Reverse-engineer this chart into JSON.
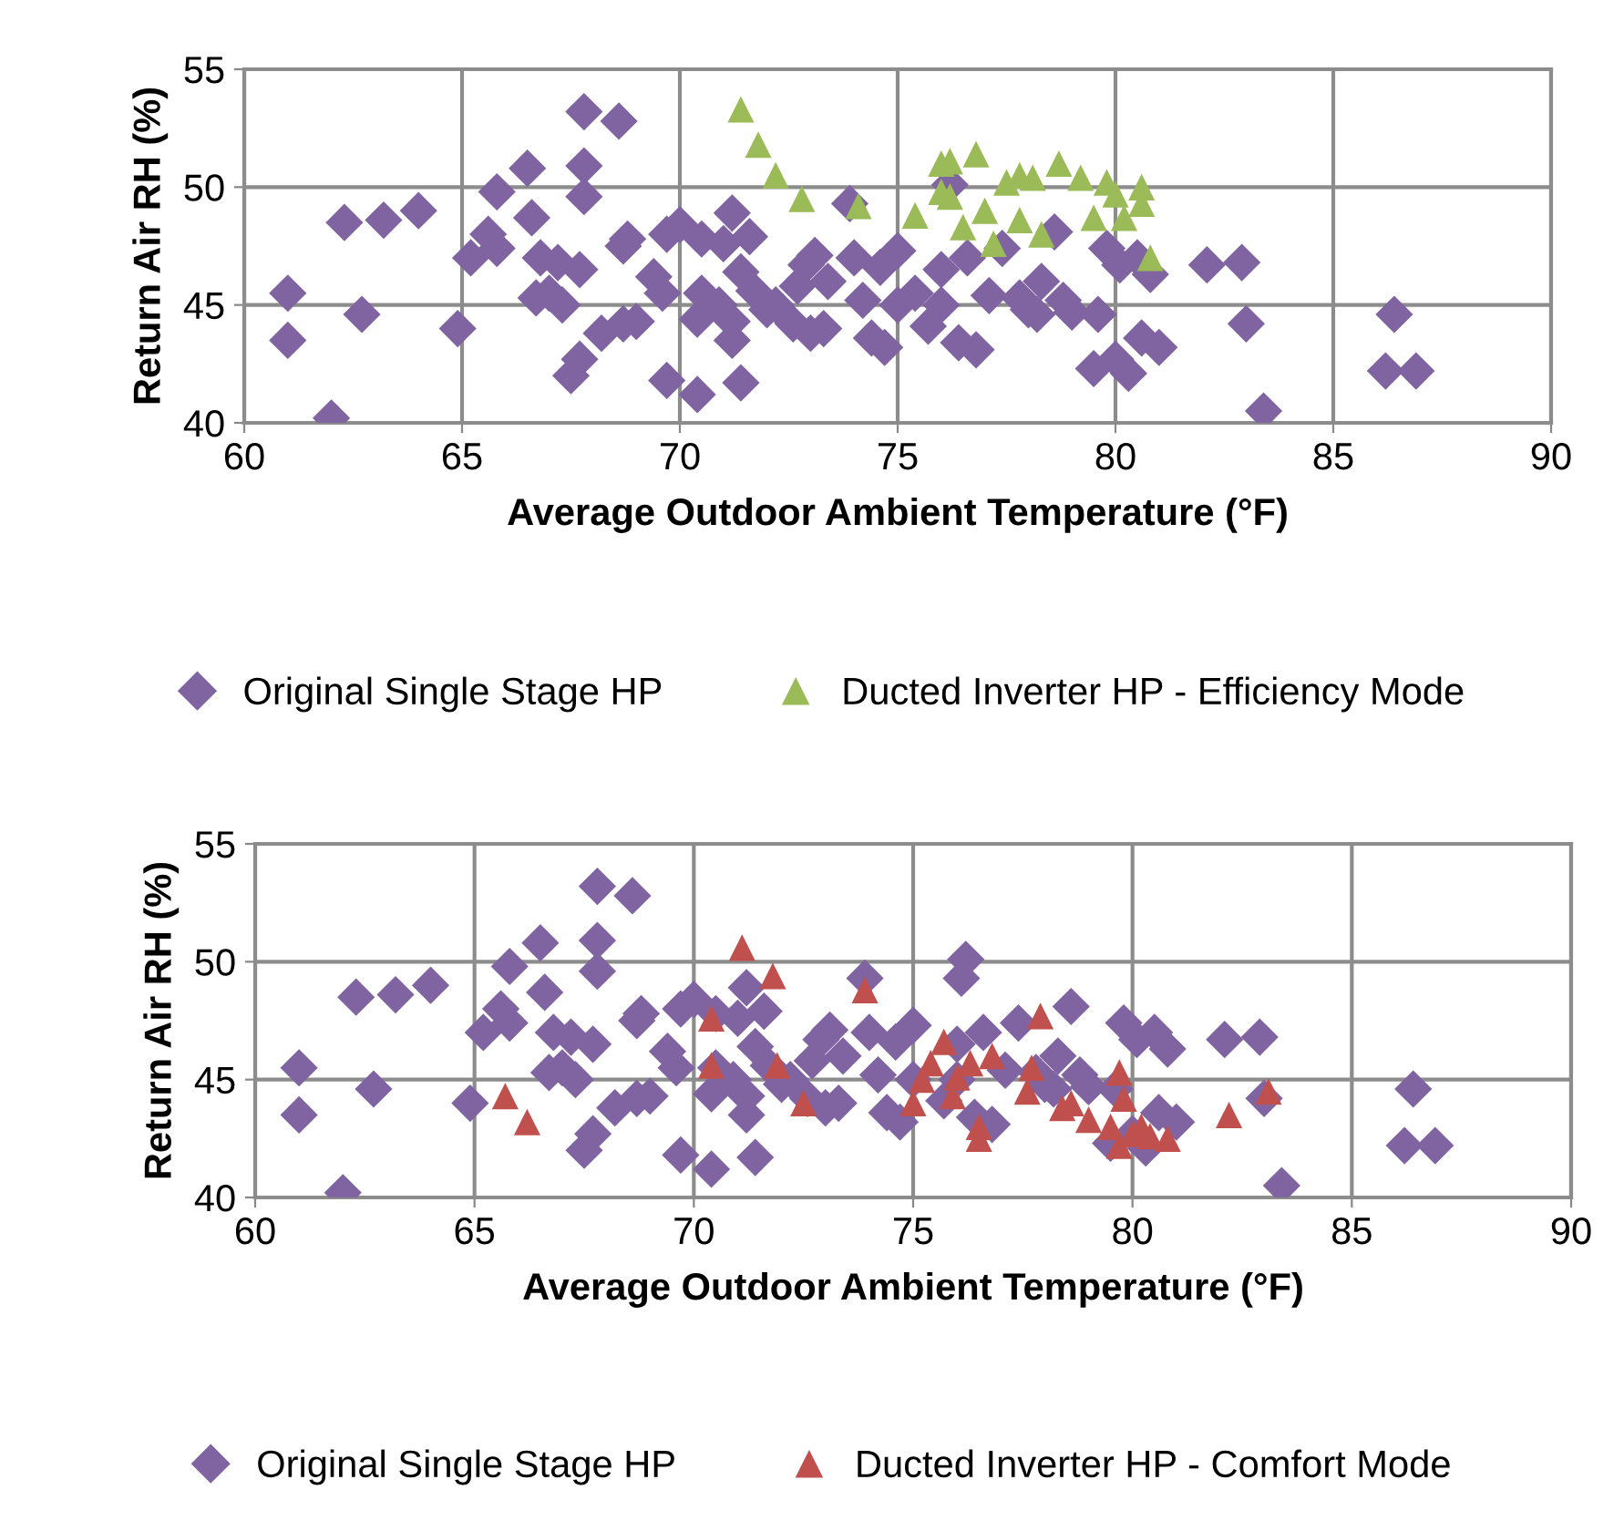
{
  "chart_data": [
    {
      "type": "scatter",
      "xlabel": "Average Outdoor Ambient Temperature (°F)",
      "ylabel": "Return Air RH (%)",
      "xlim": [
        60,
        90
      ],
      "xticks": [
        60,
        65,
        70,
        75,
        80,
        85,
        90
      ],
      "ylim": [
        40,
        55
      ],
      "yticks": [
        40,
        45,
        50,
        55
      ],
      "grid": true,
      "legend": "bottom",
      "series": [
        {
          "name": "Original Single Stage HP",
          "color": "#8064a2",
          "marker": "diamond",
          "x": [
            61.0,
            61.0,
            62.0,
            62.3,
            62.7,
            63.2,
            64.0,
            64.9,
            65.2,
            65.6,
            65.8,
            65.8,
            66.5,
            66.6,
            66.7,
            66.8,
            67.0,
            67.2,
            67.3,
            67.5,
            67.7,
            67.7,
            67.8,
            67.8,
            67.8,
            68.2,
            68.6,
            68.7,
            68.7,
            68.8,
            69.0,
            69.4,
            69.6,
            69.7,
            69.7,
            70.0,
            70.4,
            70.4,
            70.5,
            70.5,
            70.9,
            71.0,
            71.2,
            71.2,
            71.2,
            71.4,
            71.4,
            71.6,
            71.7,
            72.0,
            72.2,
            72.6,
            72.7,
            72.9,
            73.0,
            73.1,
            73.3,
            73.4,
            73.9,
            74.0,
            74.2,
            74.4,
            74.6,
            74.7,
            75.0,
            75.0,
            75.4,
            75.7,
            76.0,
            76.0,
            76.1,
            76.2,
            76.4,
            76.6,
            76.8,
            77.1,
            77.4,
            77.8,
            78.0,
            78.2,
            78.3,
            78.6,
            78.8,
            79.0,
            79.5,
            79.6,
            79.8,
            80.0,
            80.1,
            80.3,
            80.5,
            80.6,
            80.8,
            81.0,
            82.1,
            82.9,
            83.0,
            83.4,
            86.2,
            86.4,
            86.9
          ],
          "values": [
            45.5,
            43.5,
            40.2,
            48.5,
            44.6,
            48.6,
            49.0,
            44.0,
            47.0,
            48.0,
            49.8,
            47.4,
            50.8,
            48.7,
            45.3,
            47.0,
            45.5,
            46.8,
            45.0,
            42.0,
            42.7,
            46.5,
            53.2,
            50.9,
            49.6,
            43.8,
            52.8,
            47.5,
            44.2,
            47.8,
            44.3,
            46.2,
            45.5,
            41.8,
            48.0,
            48.4,
            41.2,
            44.4,
            45.5,
            47.8,
            45.0,
            47.6,
            44.3,
            43.5,
            48.9,
            46.4,
            41.7,
            47.9,
            45.6,
            44.8,
            45.0,
            44.2,
            45.8,
            46.7,
            43.8,
            47.1,
            44.0,
            46.0,
            49.3,
            47.0,
            45.2,
            43.6,
            46.6,
            43.2,
            47.3,
            45.0,
            45.5,
            44.1,
            46.5,
            45.0,
            null,
            50.1,
            43.4,
            47.0,
            43.1,
            45.4,
            47.4,
            45.3,
            44.8,
            44.6,
            46.0,
            48.1,
            45.2,
            44.7,
            42.3,
            44.6,
            47.4,
            42.7,
            46.7,
            42.1,
            47.0,
            43.6,
            46.3,
            43.2,
            46.7,
            46.8,
            44.2,
            40.5,
            42.2,
            44.6,
            42.2
          ]
        },
        {
          "name": "Ducted Inverter HP - Efficiency Mode",
          "color": "#9bbb59",
          "marker": "triangle",
          "x": [
            71.4,
            71.8,
            72.2,
            72.8,
            74.1,
            75.4,
            76.0,
            76.0,
            76.2,
            76.2,
            76.5,
            76.8,
            77.0,
            77.2,
            77.5,
            77.8,
            77.8,
            78.1,
            78.3,
            78.7,
            79.2,
            79.5,
            79.8,
            80.0,
            80.2,
            80.6,
            80.6,
            80.8
          ],
          "values": [
            53.3,
            51.8,
            50.5,
            49.5,
            49.2,
            48.8,
            51.0,
            49.8,
            51.1,
            49.6,
            48.3,
            51.4,
            49.0,
            47.6,
            50.2,
            50.5,
            48.6,
            50.4,
            48.0,
            51.0,
            50.4,
            48.7,
            50.2,
            49.7,
            48.7,
            49.3,
            50.0,
            47.0
          ]
        }
      ]
    },
    {
      "type": "scatter",
      "xlabel": "Average Outdoor Ambient Temperature (°F)",
      "ylabel": "Return Air RH (%)",
      "xlim": [
        60,
        90
      ],
      "xticks": [
        60,
        65,
        70,
        75,
        80,
        85,
        90
      ],
      "ylim": [
        40,
        55
      ],
      "yticks": [
        40,
        45,
        50,
        55
      ],
      "grid": true,
      "legend": "bottom",
      "series": [
        {
          "name": "Original Single Stage HP",
          "color": "#8064a2",
          "marker": "diamond",
          "x": [
            61.0,
            61.0,
            62.0,
            62.3,
            62.7,
            63.2,
            64.0,
            64.9,
            65.2,
            65.6,
            65.8,
            65.8,
            66.5,
            66.6,
            66.7,
            66.8,
            67.0,
            67.2,
            67.3,
            67.5,
            67.7,
            67.7,
            67.8,
            67.8,
            67.8,
            68.2,
            68.6,
            68.7,
            68.7,
            68.8,
            69.0,
            69.4,
            69.6,
            69.7,
            69.7,
            70.0,
            70.4,
            70.4,
            70.5,
            70.5,
            70.9,
            71.0,
            71.2,
            71.2,
            71.2,
            71.4,
            71.4,
            71.6,
            71.7,
            72.0,
            72.2,
            72.6,
            72.7,
            72.9,
            73.0,
            73.1,
            73.3,
            73.4,
            73.9,
            74.0,
            74.2,
            74.4,
            74.6,
            74.7,
            75.0,
            75.0,
            75.4,
            75.7,
            76.0,
            76.0,
            76.1,
            76.2,
            76.4,
            76.6,
            76.8,
            77.1,
            77.4,
            77.8,
            78.0,
            78.2,
            78.3,
            78.6,
            78.8,
            79.0,
            79.5,
            79.6,
            79.8,
            80.0,
            80.1,
            80.3,
            80.5,
            80.6,
            80.8,
            81.0,
            82.1,
            82.9,
            83.0,
            83.4,
            86.2,
            86.4,
            86.9
          ],
          "values": [
            45.5,
            43.5,
            40.2,
            48.5,
            44.6,
            48.6,
            49.0,
            44.0,
            47.0,
            48.0,
            49.8,
            47.4,
            50.8,
            48.7,
            45.3,
            47.0,
            45.5,
            46.8,
            45.0,
            42.0,
            42.7,
            46.5,
            53.2,
            50.9,
            49.6,
            43.8,
            52.8,
            47.5,
            44.2,
            47.8,
            44.3,
            46.2,
            45.5,
            41.8,
            48.0,
            48.4,
            41.2,
            44.4,
            45.5,
            47.8,
            45.0,
            47.6,
            44.3,
            43.5,
            48.9,
            46.4,
            41.7,
            47.9,
            45.6,
            44.8,
            45.0,
            44.2,
            45.8,
            46.7,
            43.8,
            47.1,
            44.0,
            46.0,
            49.3,
            47.0,
            45.2,
            43.6,
            46.6,
            43.2,
            47.3,
            45.0,
            null,
            44.1,
            46.5,
            45.0,
            49.3,
            50.1,
            43.4,
            47.0,
            43.1,
            45.4,
            47.4,
            45.3,
            44.8,
            44.6,
            46.0,
            48.1,
            45.2,
            44.7,
            42.3,
            44.6,
            47.4,
            42.7,
            46.7,
            42.1,
            47.0,
            43.6,
            46.3,
            43.2,
            46.7,
            46.8,
            44.2,
            40.5,
            42.2,
            44.6,
            42.2
          ]
        },
        {
          "name": "Ducted Inverter HP - Comfort Mode",
          "color": "#c0504d",
          "marker": "triangle",
          "x": [
            65.7,
            66.2,
            70.4,
            70.4,
            71.1,
            71.8,
            71.9,
            72.5,
            73.9,
            75.0,
            75.2,
            75.4,
            75.7,
            75.9,
            76.0,
            76.3,
            76.5,
            76.5,
            76.8,
            77.6,
            77.7,
            77.9,
            78.4,
            78.6,
            79.0,
            79.5,
            79.7,
            79.7,
            79.8,
            80.0,
            80.2,
            80.4,
            80.7,
            80.8,
            82.1,
            82.2,
            83.1
          ],
          "values": [
            44.3,
            43.2,
            47.6,
            45.6,
            50.6,
            49.4,
            45.6,
            44.0,
            48.8,
            44.0,
            45.0,
            45.7,
            46.6,
            44.3,
            45.1,
            45.7,
            43.0,
            42.5,
            46.0,
            44.5,
            45.5,
            47.7,
            43.8,
            44.0,
            43.3,
            43.0,
            42.2,
            45.3,
            44.2,
            42.7,
            43.0,
            42.6,
            null,
            42.5,
            null,
            43.5,
            44.5
          ]
        }
      ]
    }
  ]
}
